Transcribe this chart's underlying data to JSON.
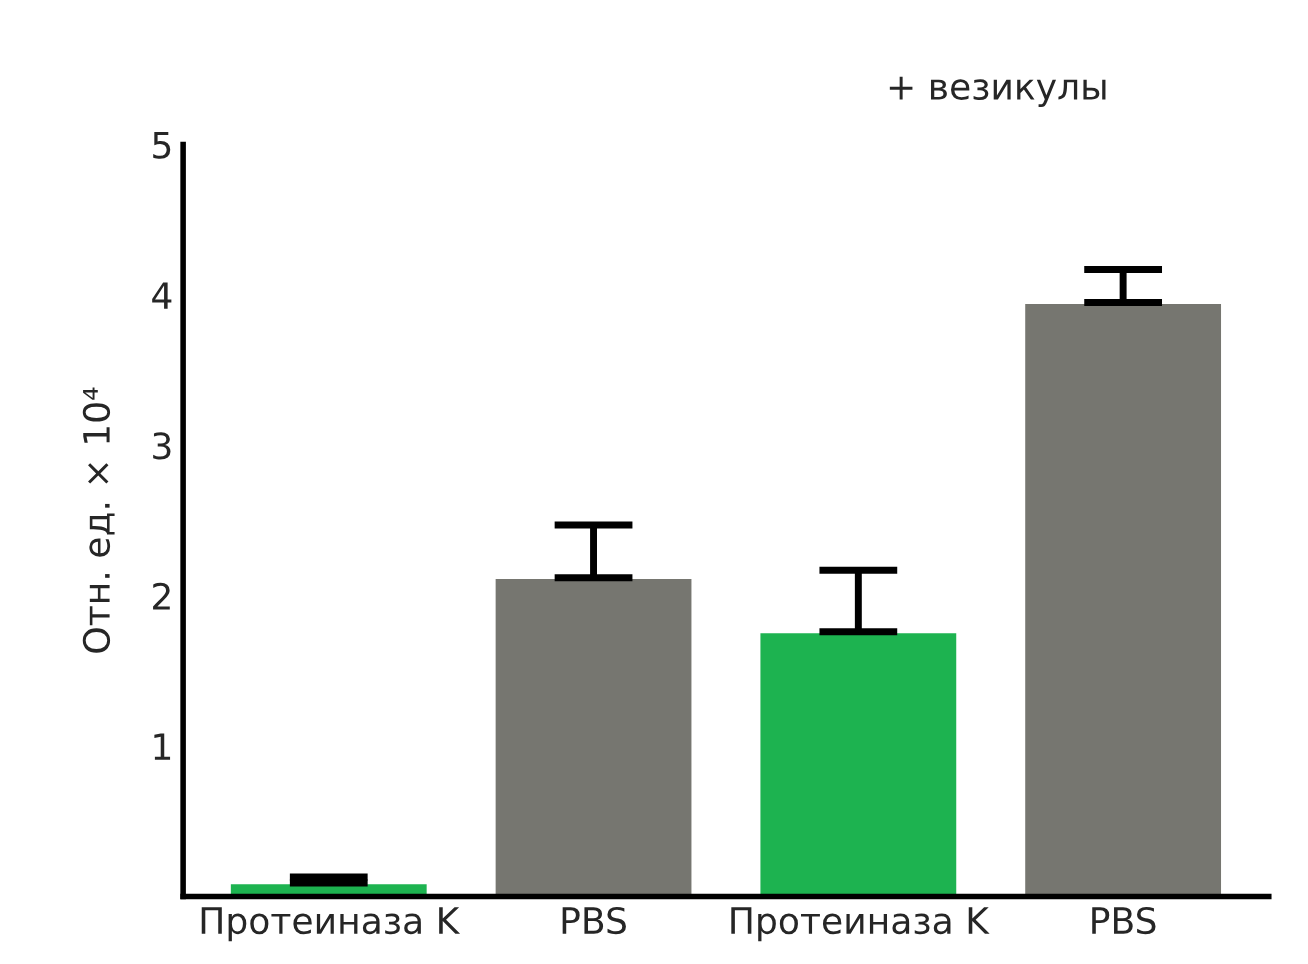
{
  "chart_data": {
    "type": "bar",
    "ylabel": "Отн. ед. × 10⁴",
    "categories": [
      "Протеиназа K",
      "PBS",
      "Протеиназа K",
      "PBS"
    ],
    "values": [
      0.09,
      2.12,
      1.76,
      3.95
    ],
    "colors": [
      "#1db350",
      "#767670",
      "#1db350",
      "#767670"
    ],
    "errors": [
      [
        0.09,
        0.13
      ],
      [
        2.12,
        2.47
      ],
      [
        1.76,
        2.17
      ],
      [
        3.95,
        4.17
      ]
    ],
    "ylim": [
      0,
      5
    ],
    "yticks": [
      1,
      2,
      3,
      4,
      5
    ],
    "grid": false,
    "annotations": [
      "+ везикулы"
    ]
  }
}
